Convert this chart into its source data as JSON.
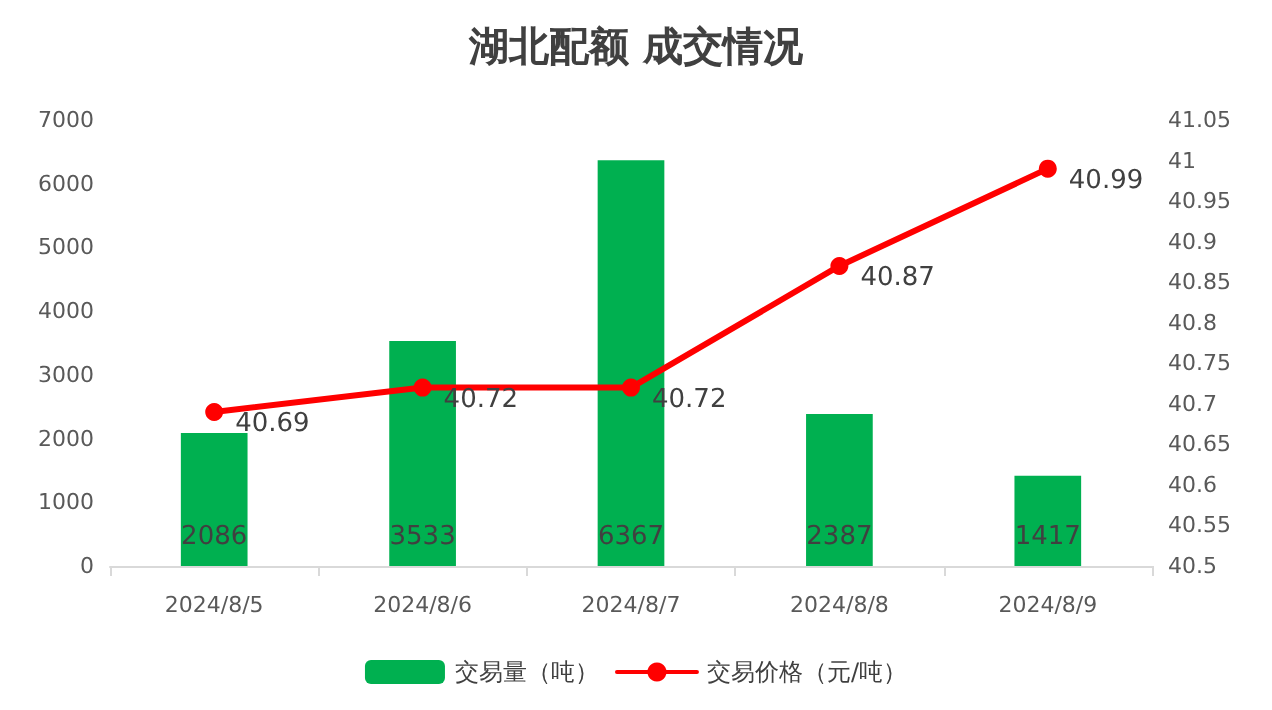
{
  "chart_data": {
    "type": "bar",
    "title": "湖北配额 成交情况",
    "categories": [
      "2024/8/5",
      "2024/8/6",
      "2024/8/7",
      "2024/8/8",
      "2024/8/9"
    ],
    "series": [
      {
        "name": "交易量（吨）",
        "color": "#00b050",
        "values": [
          2086,
          3533,
          6367,
          2387,
          1417
        ]
      },
      {
        "name": "交易价格（元/吨）",
        "type": "line",
        "axis": "y2",
        "color": "#ff0000",
        "values": [
          40.69,
          40.72,
          40.72,
          40.87,
          40.99
        ]
      }
    ],
    "ylim": [
      0,
      7000
    ],
    "yticks": [
      0,
      1000,
      2000,
      3000,
      4000,
      5000,
      6000,
      7000
    ],
    "y2lim": [
      40.5,
      41.05
    ],
    "y2ticks": [
      40.5,
      40.55,
      40.6,
      40.65,
      40.7,
      40.75,
      40.8,
      40.85,
      40.9,
      40.95,
      41,
      41.05
    ],
    "data_labels": true,
    "grid": false,
    "legend": "bottom",
    "marker": "circle",
    "line_style": "solid"
  }
}
